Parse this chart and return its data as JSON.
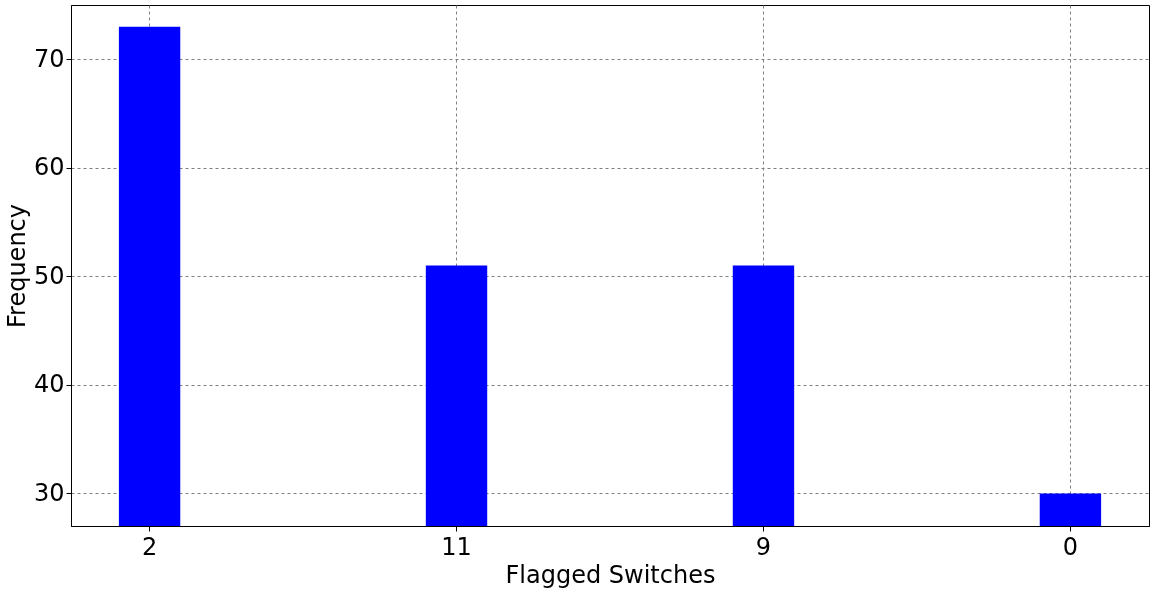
{
  "chart_data": {
    "type": "bar",
    "xlabel": "Flagged Switches",
    "ylabel": "Frequency",
    "categories": [
      "2",
      "11",
      "9",
      "0"
    ],
    "values": [
      73,
      51,
      51,
      30
    ],
    "color": "#0000ff",
    "ylim": [
      27,
      75
    ],
    "yticks": [
      30,
      40,
      50,
      60,
      70
    ],
    "grid": true
  }
}
